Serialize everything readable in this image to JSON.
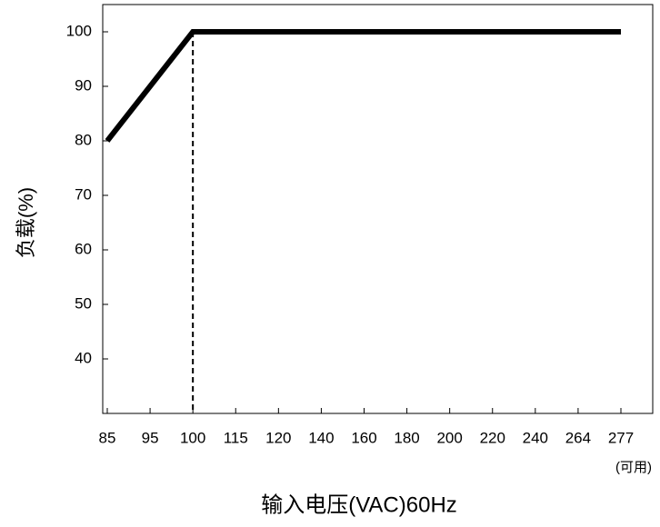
{
  "chart_data": {
    "type": "line",
    "x_label": "输入电压(VAC)60Hz",
    "y_label": "负载(%)",
    "annotation": "(可用)",
    "categories": [
      "85",
      "95",
      "100",
      "115",
      "120",
      "140",
      "160",
      "180",
      "200",
      "220",
      "240",
      "264",
      "277"
    ],
    "series": [
      {
        "name": "负载",
        "color": "#000000",
        "values": [
          80,
          90,
          100,
          100,
          100,
          100,
          100,
          100,
          100,
          100,
          100,
          100,
          100
        ]
      }
    ],
    "ylim": [
      30,
      105
    ],
    "yticks": [
      40,
      50,
      60,
      70,
      80,
      90,
      100
    ]
  }
}
